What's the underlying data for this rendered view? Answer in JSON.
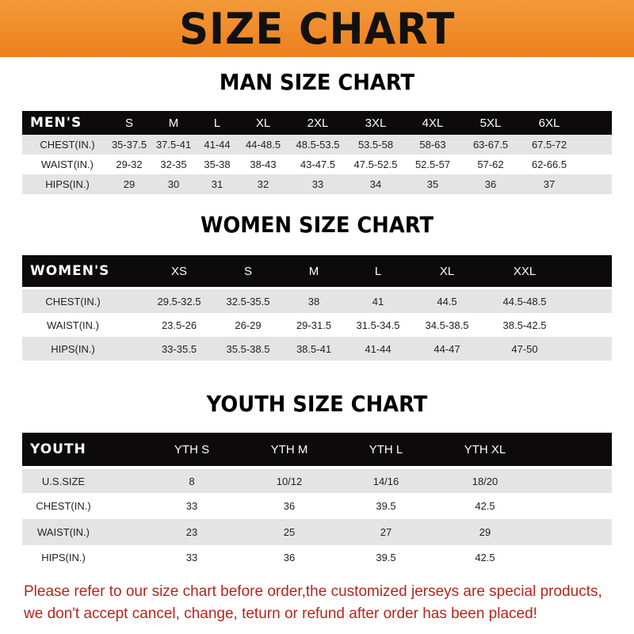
{
  "banner": {
    "title": "SIZE CHART",
    "color": "#ee7f1c"
  },
  "men": {
    "title": "MAN SIZE CHART",
    "headers": [
      "MEN'S",
      "S",
      "M",
      "L",
      "XL",
      "2XL",
      "3XL",
      "4XL",
      "5XL",
      "6XL"
    ],
    "rows": [
      [
        "CHEST(IN.)",
        "35-37.5",
        "37.5-41",
        "41-44",
        "44-48.5",
        "48.5-53.5",
        "53.5-58",
        "58-63",
        "63-67.5",
        "67.5-72"
      ],
      [
        "WAIST(IN.)",
        "29-32",
        "32-35",
        "35-38",
        "38-43",
        "43-47.5",
        "47.5-52.5",
        "52.5-57",
        "57-62",
        "62-66.5"
      ],
      [
        "HIPS(IN.)",
        "29",
        "30",
        "31",
        "32",
        "33",
        "34",
        "35",
        "36",
        "37"
      ]
    ]
  },
  "women": {
    "title": "WOMEN SIZE CHART",
    "headers": [
      "WOMEN'S",
      "XS",
      "S",
      "M",
      "L",
      "XL",
      "XXL"
    ],
    "rows": [
      [
        "CHEST(IN.)",
        "29.5-32.5",
        "32.5-35.5",
        "38",
        "41",
        "44.5",
        "44.5-48.5"
      ],
      [
        "WAIST(IN.)",
        "23.5-26",
        "26-29",
        "29-31.5",
        "31.5-34.5",
        "34.5-38.5",
        "38.5-42.5"
      ],
      [
        "HIPS(IN.)",
        "33-35.5",
        "35.5-38.5",
        "38.5-41",
        "41-44",
        "44-47",
        "47-50"
      ]
    ]
  },
  "youth": {
    "title": "YOUTH SIZE CHART",
    "headers": [
      "YOUTH",
      "YTH S",
      "YTH M",
      "YTH L",
      "YTH XL"
    ],
    "rows": [
      [
        "U.S.SIZE",
        "8",
        "10/12",
        "14/16",
        "18/20"
      ],
      [
        "CHEST(IN.)",
        "33",
        "36",
        "39.5",
        "42.5"
      ],
      [
        "WAIST(IN.)",
        "23",
        "25",
        "27",
        "29"
      ],
      [
        "HIPS(IN.)",
        "33",
        "36",
        "39.5",
        "42.5"
      ]
    ]
  },
  "notice": {
    "line1": "Please refer to our size chart before order,the customized jerseys are special products,",
    "line2": "we don't accept cancel, change, teturn or refund after order has been placed!",
    "color": "#b3261e"
  }
}
